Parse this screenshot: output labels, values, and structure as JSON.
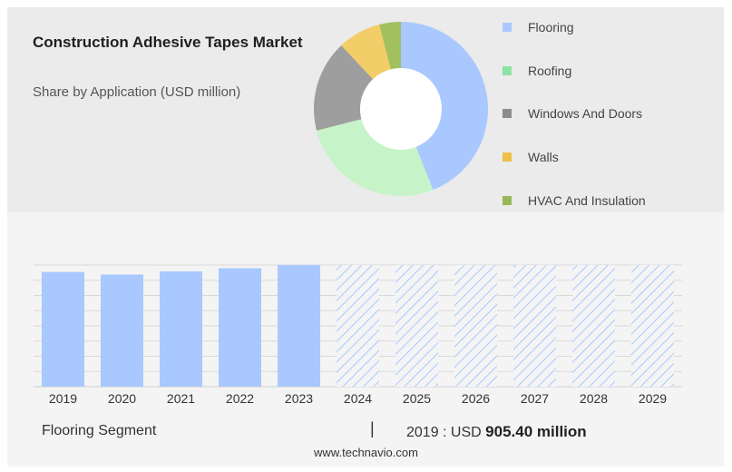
{
  "header": {
    "title": "Construction Adhesive Tapes Market",
    "subtitle": "Share by Application (USD million)"
  },
  "legend": [
    {
      "label": "Flooring",
      "color": "#a9c8ff"
    },
    {
      "label": "Roofing",
      "color": "#8ee3a2"
    },
    {
      "label": "Windows And Doors",
      "color": "#8c8c8c"
    },
    {
      "label": "Walls",
      "color": "#ecc047"
    },
    {
      "label": "HVAC And Insulation",
      "color": "#96b85a"
    }
  ],
  "footer": {
    "segment": "Flooring Segment",
    "separator": "|",
    "value_prefix": "2019 : USD",
    "value_bold": "905.40 million"
  },
  "source": "www.technavio.com",
  "chart_data": [
    {
      "type": "pie",
      "title": "Share by Application (USD million)",
      "donut": true,
      "labels": [
        "Flooring",
        "Roofing",
        "Windows And Doors",
        "Walls",
        "HVAC And Insulation"
      ],
      "values": [
        44,
        27,
        17,
        8,
        4
      ],
      "colors": [
        "#a9c8ff",
        "#c6f4c8",
        "#9e9e9e",
        "#f3cd67",
        "#a3c061"
      ]
    },
    {
      "type": "bar",
      "categories": [
        "2019",
        "2020",
        "2021",
        "2022",
        "2023",
        "2024",
        "2025",
        "2026",
        "2027",
        "2028",
        "2029"
      ],
      "values": [
        905.4,
        885,
        910,
        935,
        960,
        null,
        null,
        null,
        null,
        null,
        null
      ],
      "forecast_categories": [
        "2024",
        "2025",
        "2026",
        "2027",
        "2028",
        "2029"
      ],
      "forecast_display_level": 960,
      "ylim": [
        0,
        960
      ],
      "grid": true,
      "bar_color": "#a9c8ff",
      "forecast_pattern": "hatched"
    }
  ]
}
